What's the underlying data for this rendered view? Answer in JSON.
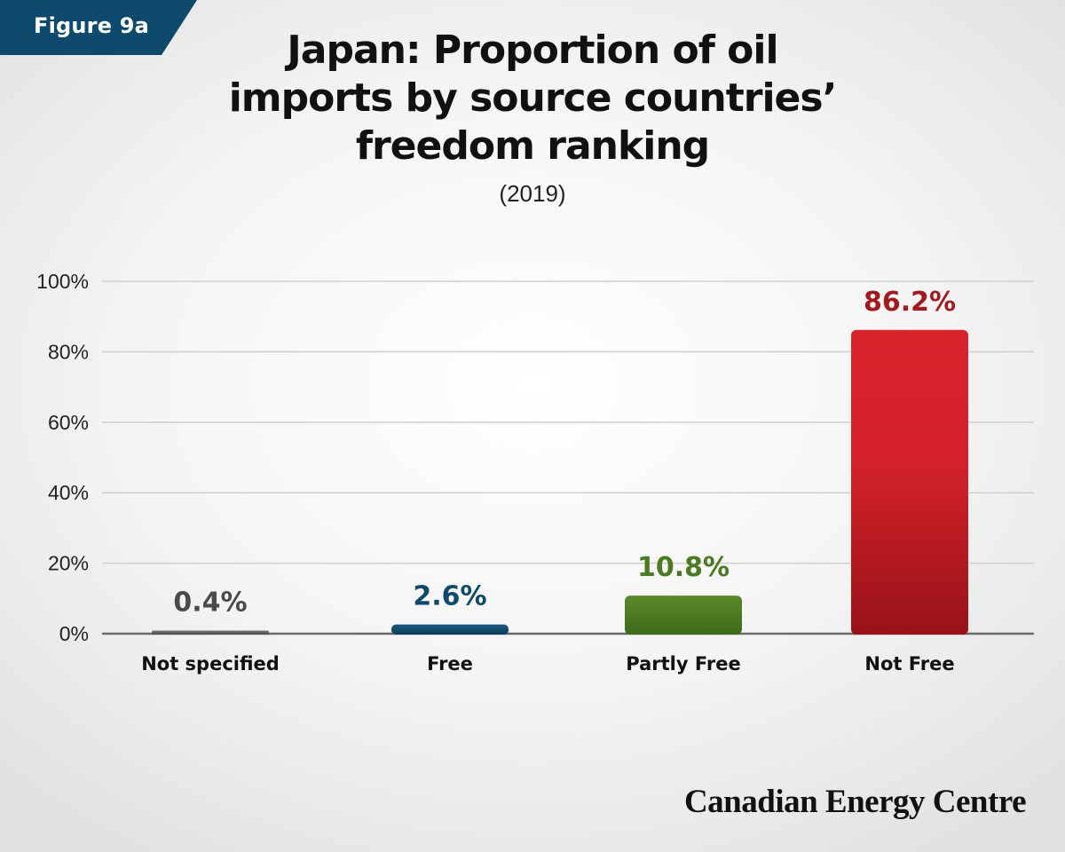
{
  "figure_tag": "Figure 9a",
  "logo_text": "Canadian Energy Centre",
  "chart_data": {
    "type": "bar",
    "title_lines": [
      "Japan: Proportion of oil",
      "imports by source countries’",
      "freedom ranking"
    ],
    "subtitle": "(2019)",
    "categories": [
      "Not specified",
      "Free",
      "Partly Free",
      "Not Free"
    ],
    "values": [
      0.4,
      2.6,
      10.8,
      86.2
    ],
    "data_labels": [
      "0.4%",
      "2.6%",
      "10.8%",
      "86.2%"
    ],
    "colors": [
      "#5a5a5a",
      "#0e4a6c",
      "#4a7a22",
      "#d32129"
    ],
    "label_colors": [
      "#4a4a4a",
      "#0e4a6c",
      "#4a7a22",
      "#a11a1f"
    ],
    "yticks": [
      0,
      20,
      40,
      60,
      80,
      100
    ],
    "ytick_labels": [
      "0%",
      "20%",
      "40%",
      "60%",
      "80%",
      "100%"
    ],
    "ylim": [
      0,
      100
    ],
    "grid": true
  }
}
